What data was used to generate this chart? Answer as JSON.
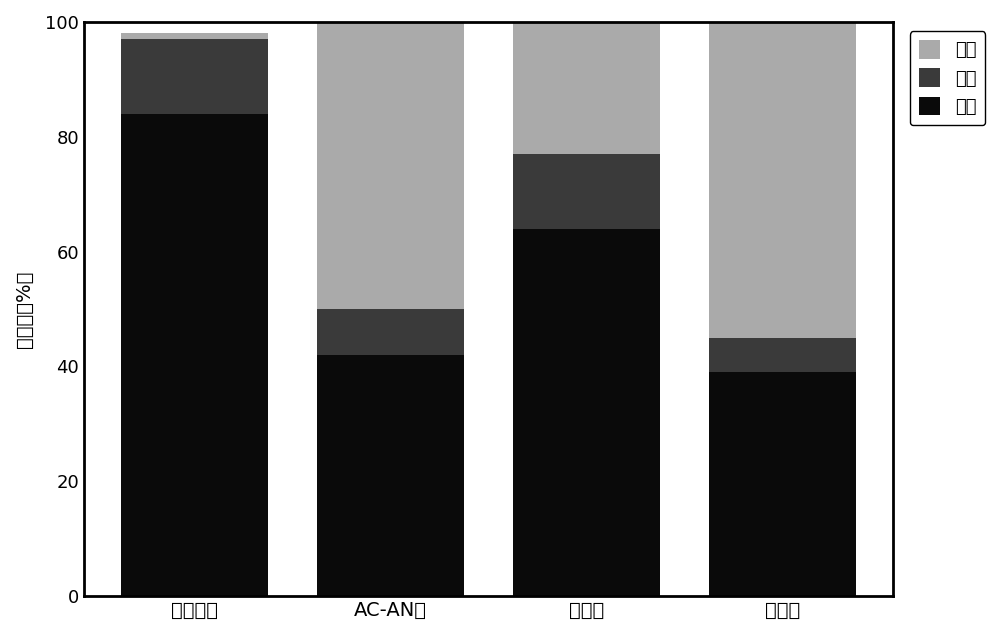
{
  "categories": [
    "初始状态",
    "AC-AN型",
    "厄氧型",
    "好氧型"
  ],
  "solid": [
    84,
    42,
    64,
    39
  ],
  "liquid": [
    13,
    8,
    13,
    6
  ],
  "gas": [
    1,
    50,
    23,
    55
  ],
  "color_solid": "#0a0a0a",
  "color_liquid": "#3a3a3a",
  "color_gas": "#aaaaaa",
  "ylabel": "碳含量（%）",
  "ylim": [
    0,
    100
  ],
  "yticks": [
    0,
    20,
    40,
    60,
    80,
    100
  ],
  "legend_labels": [
    "气态",
    "液态",
    "固态"
  ],
  "bar_width": 0.75,
  "figsize": [
    10.0,
    6.35
  ],
  "dpi": 100
}
